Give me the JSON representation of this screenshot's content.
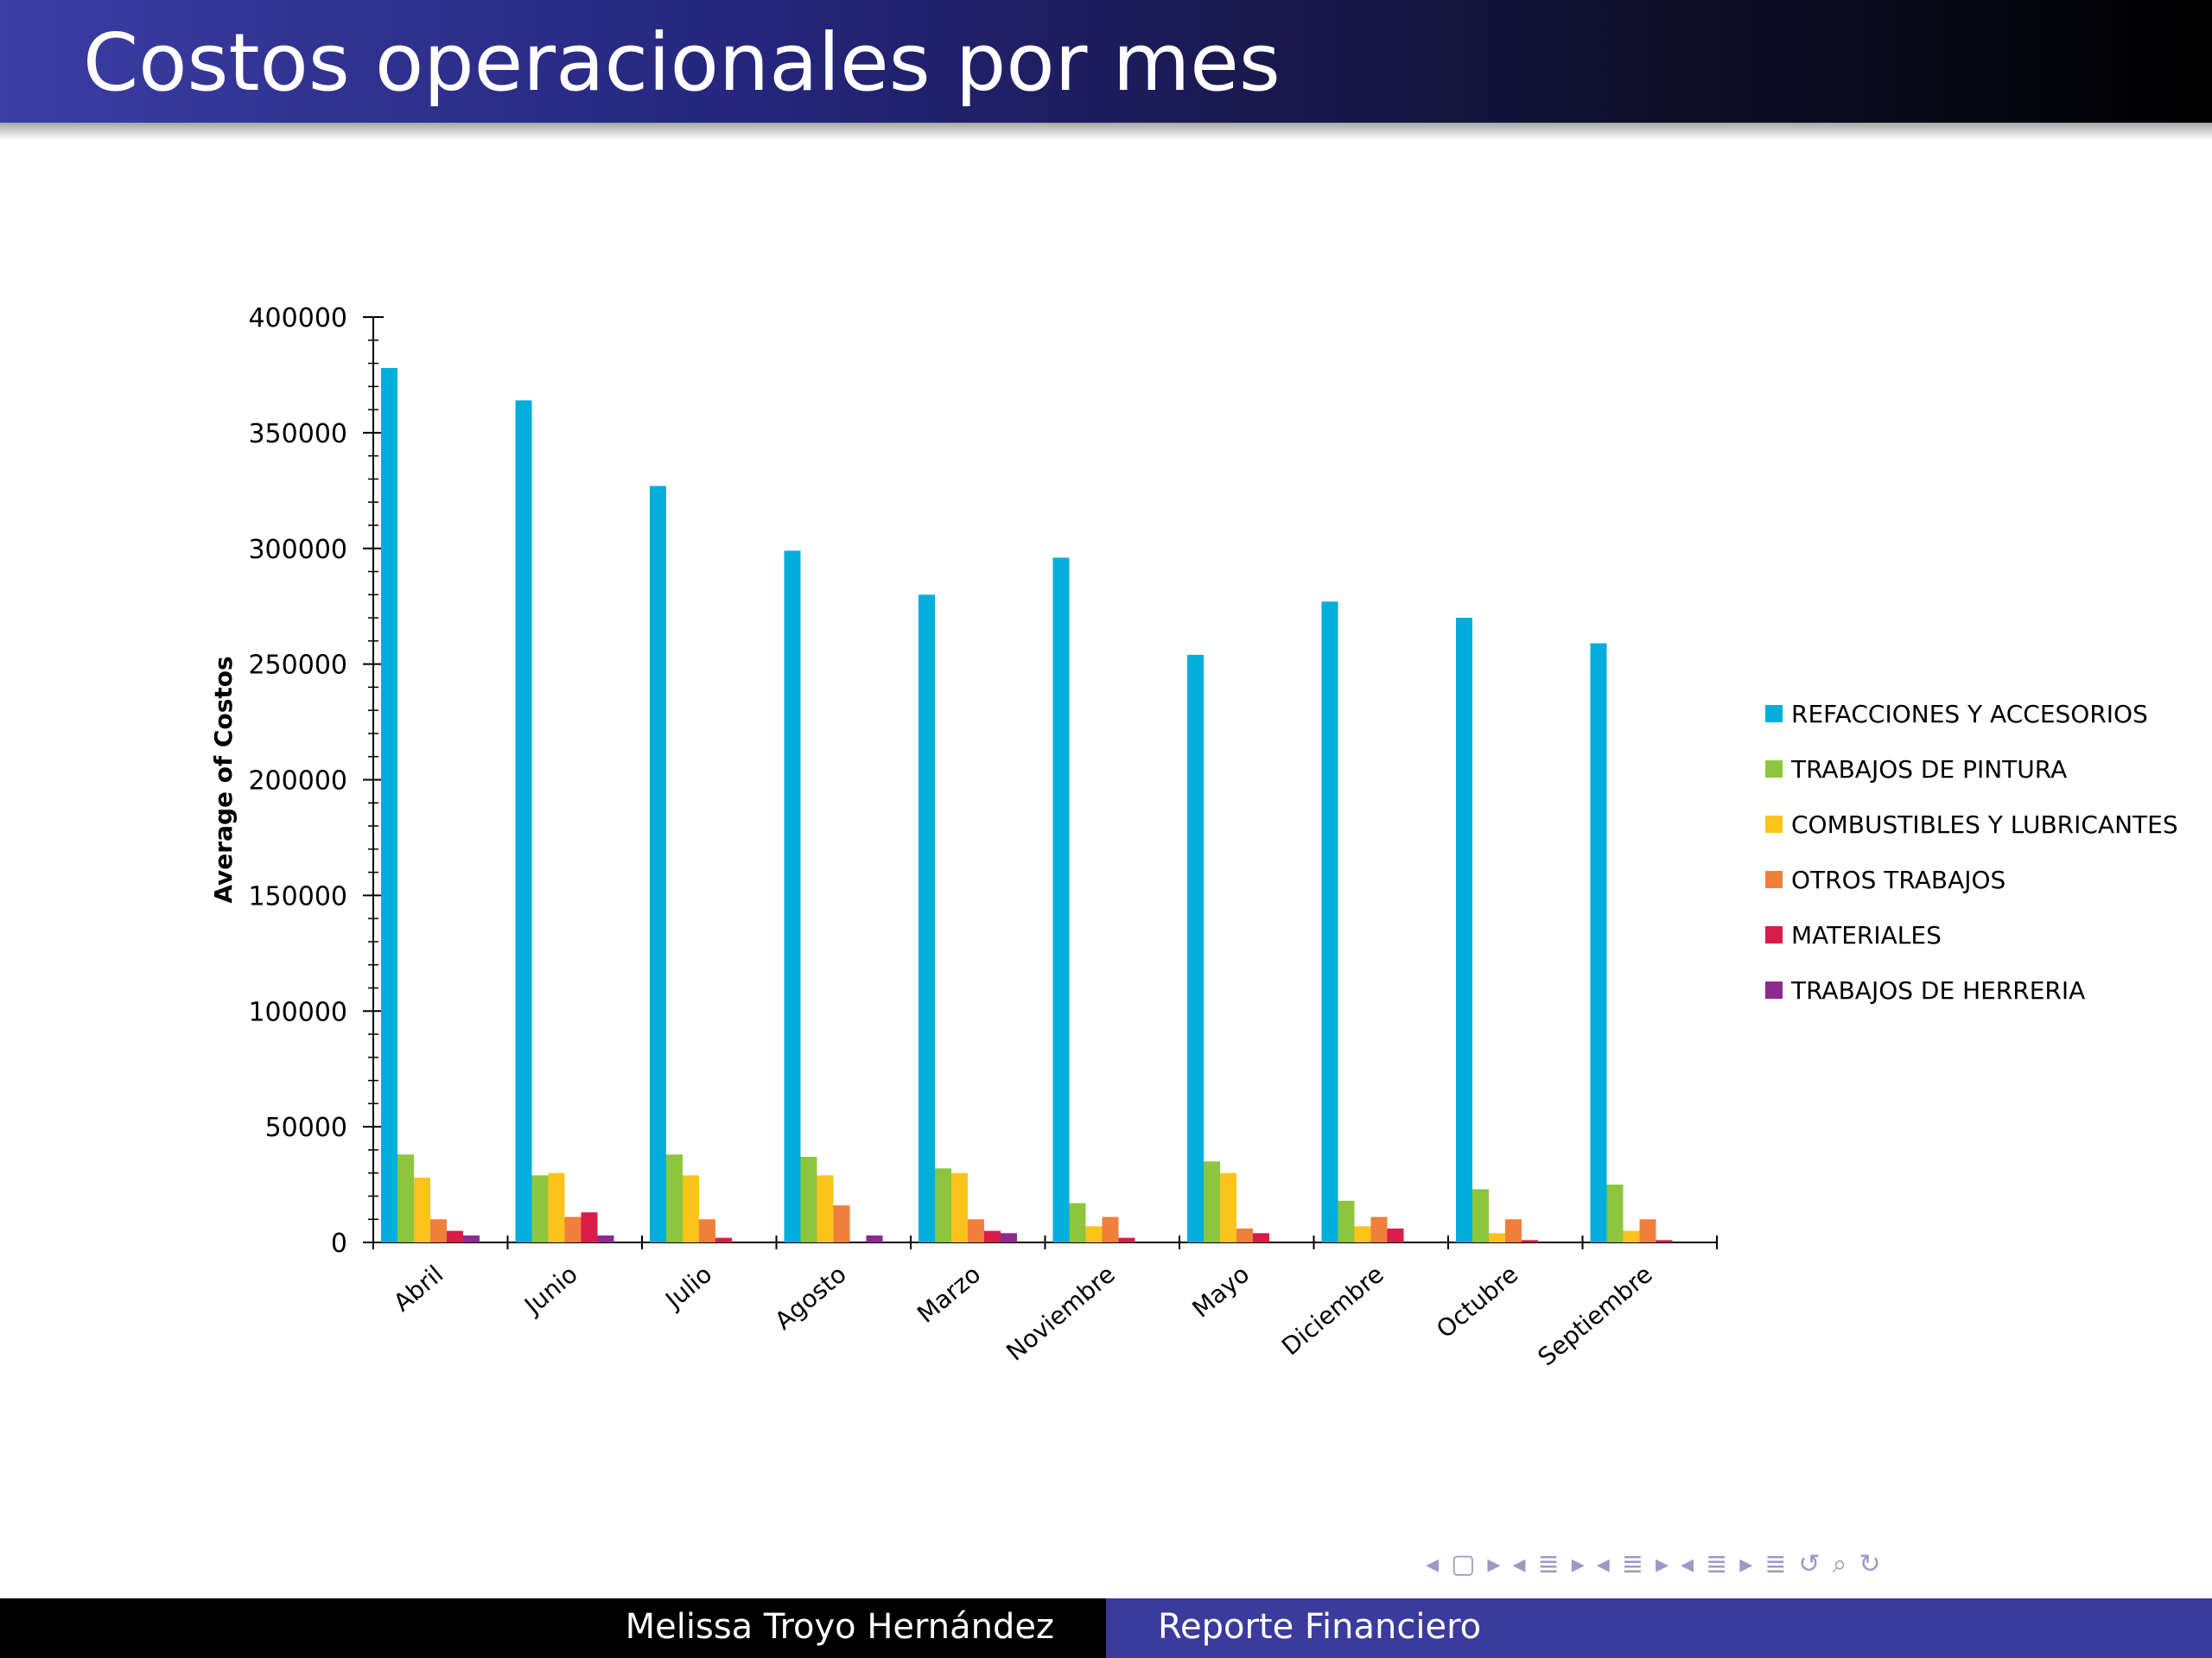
{
  "slide": {
    "title": "Costos operacionales por mes"
  },
  "footer": {
    "author": "Melissa Troyo Hernández",
    "talk_title": "Reporte Financiero"
  },
  "nav_icons": [
    "arrow-left-icon",
    "frame-icon",
    "arrow-right-icon",
    "arrow-left-icon",
    "subsection-icon",
    "arrow-right-icon",
    "arrow-left-icon",
    "section-icon",
    "arrow-right-icon",
    "arrow-left-icon",
    "section-icon",
    "arrow-right-icon",
    "toc-icon",
    "undo-icon",
    "search-icon",
    "redo-icon"
  ],
  "chart_data": {
    "type": "bar",
    "title": "",
    "xlabel": "",
    "ylabel": "Average of Costos",
    "ylim": [
      0,
      400000
    ],
    "yticks": [
      0,
      50000,
      100000,
      150000,
      200000,
      250000,
      300000,
      350000,
      400000
    ],
    "grid": false,
    "legend_position": "right",
    "categories": [
      "Abril",
      "Junio",
      "Julio",
      "Agosto",
      "Marzo",
      "Noviembre",
      "Mayo",
      "Diciembre",
      "Octubre",
      "Septiembre"
    ],
    "series": [
      {
        "name": "REFACCIONES Y ACCESORIOS",
        "color": "#00aedb",
        "values": [
          378000,
          364000,
          327000,
          299000,
          280000,
          296000,
          254000,
          277000,
          270000,
          259000
        ]
      },
      {
        "name": "TRABAJOS DE PINTURA",
        "color": "#8cc63e",
        "values": [
          38000,
          29000,
          38000,
          37000,
          32000,
          17000,
          35000,
          18000,
          23000,
          25000
        ]
      },
      {
        "name": "COMBUSTIBLES Y LUBRICANTES",
        "color": "#fcc31d",
        "values": [
          28000,
          30000,
          29000,
          29000,
          30000,
          7000,
          30000,
          7000,
          4000,
          5000
        ]
      },
      {
        "name": "OTROS TRABAJOS",
        "color": "#f07f3c",
        "values": [
          10000,
          11000,
          10000,
          16000,
          10000,
          11000,
          6000,
          11000,
          10000,
          10000
        ]
      },
      {
        "name": "MATERIALES",
        "color": "#d91c4a",
        "values": [
          5000,
          13000,
          2000,
          0,
          5000,
          2000,
          4000,
          6000,
          1000,
          1000
        ]
      },
      {
        "name": "TRABAJOS DE HERRERIA",
        "color": "#8e2a8e",
        "values": [
          3000,
          3000,
          0,
          3000,
          4000,
          0,
          0,
          0,
          0,
          0
        ]
      }
    ]
  }
}
